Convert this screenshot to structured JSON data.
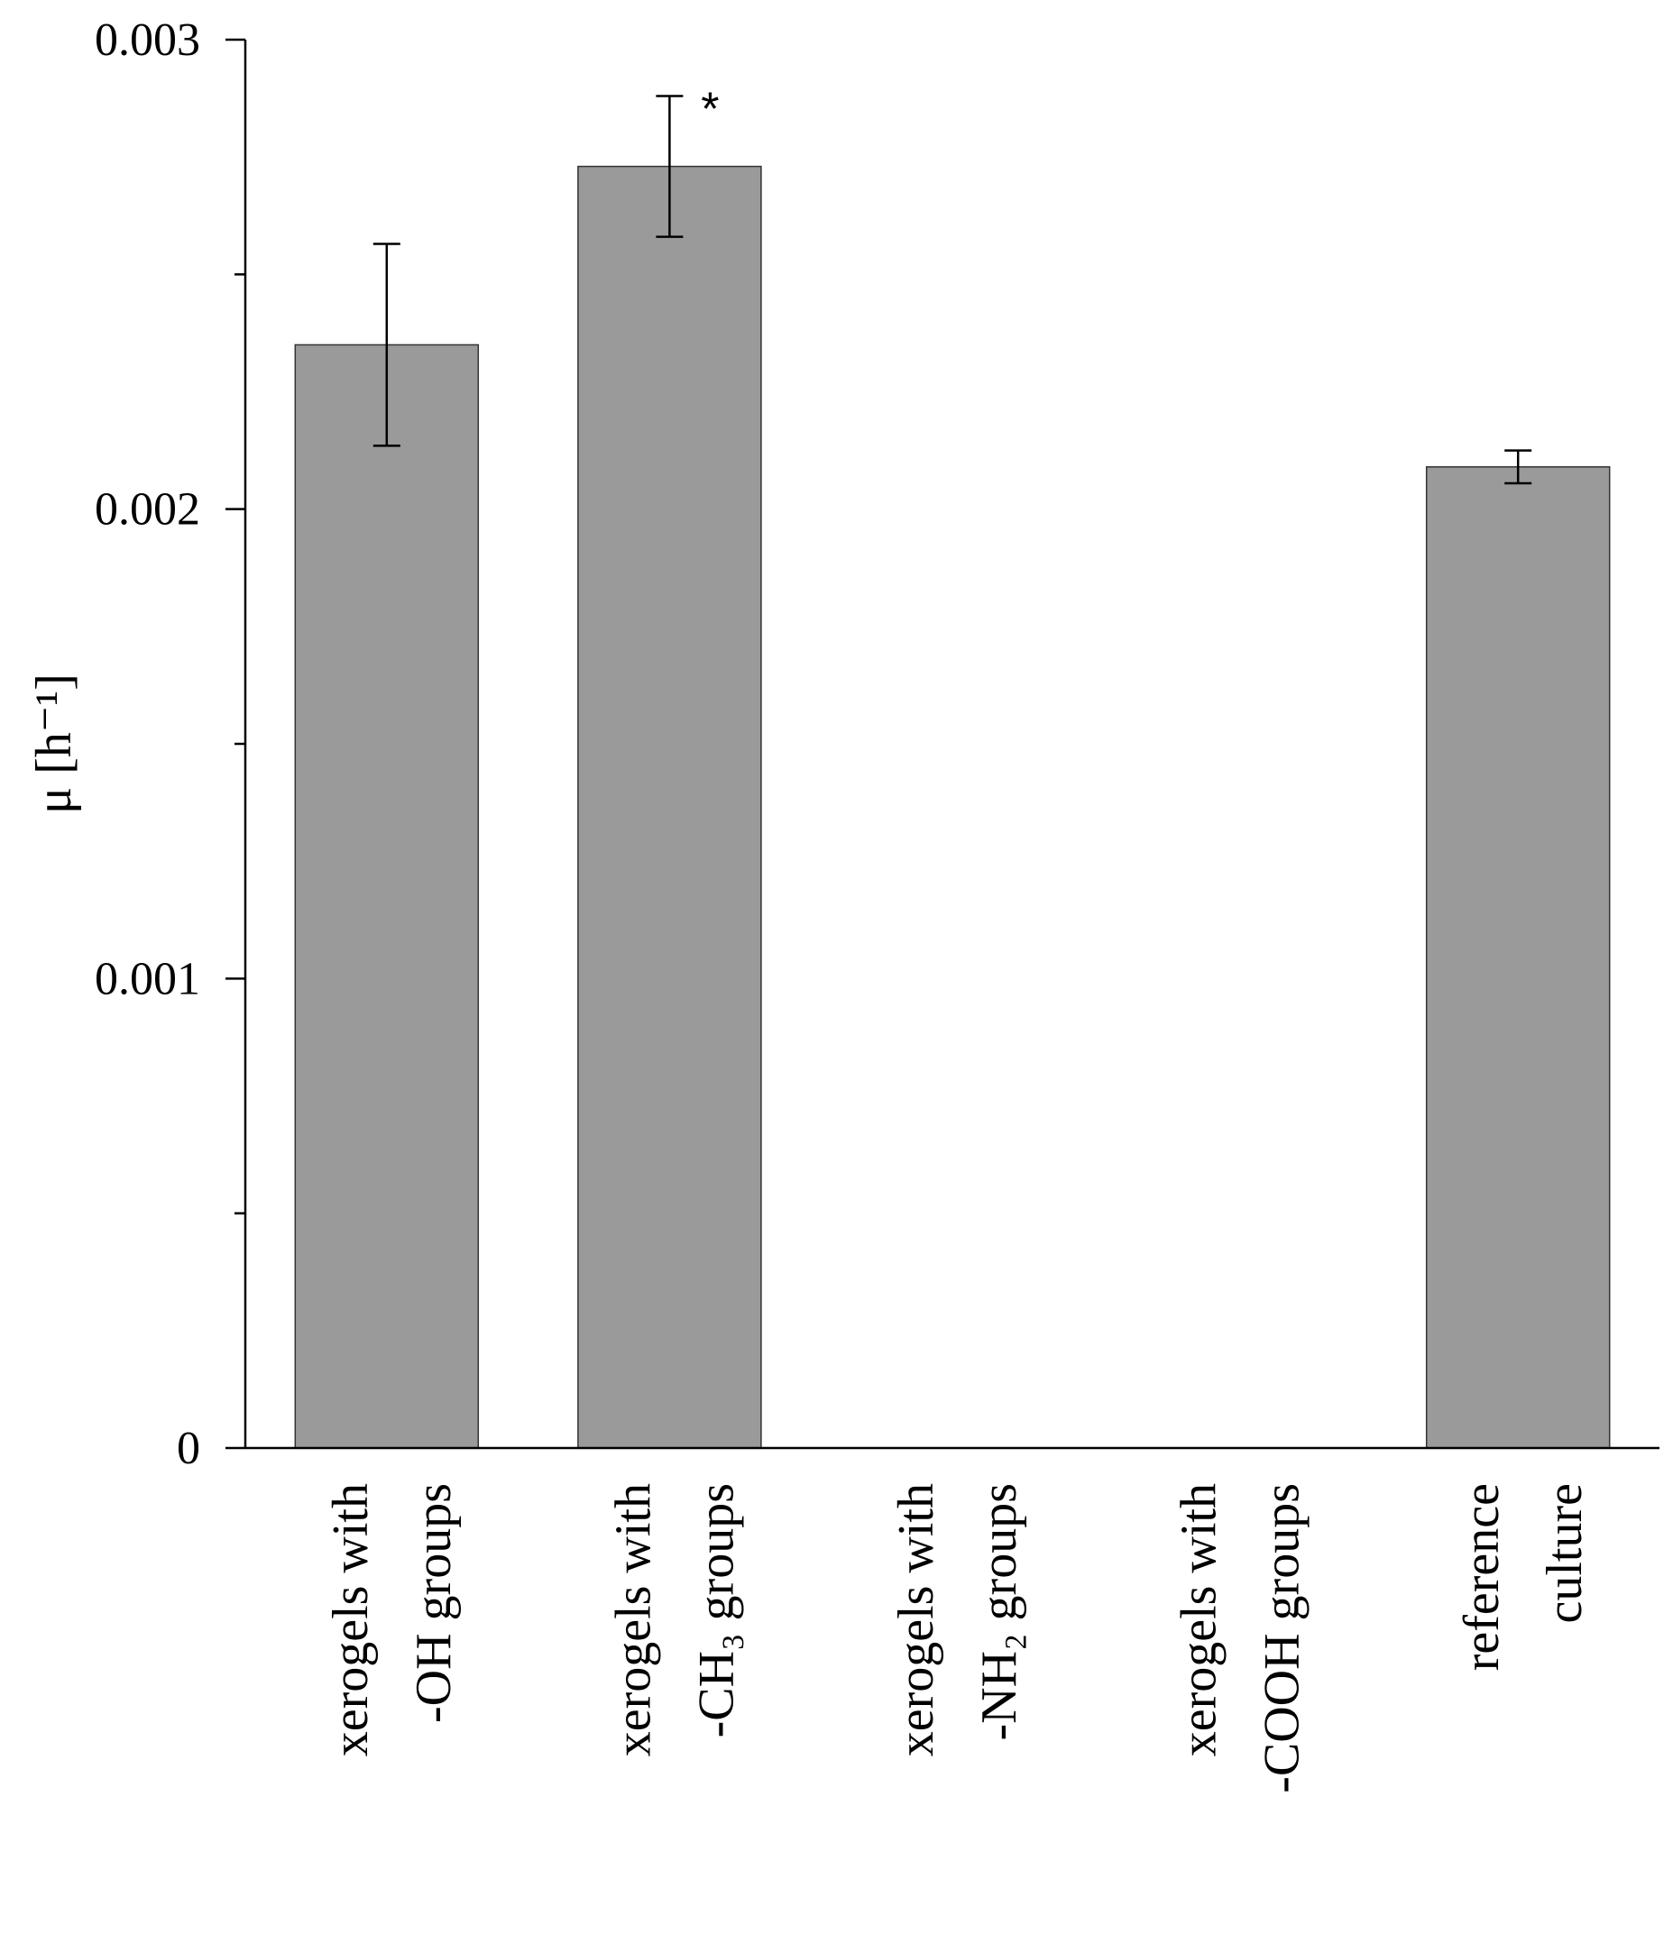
{
  "chart_data": {
    "type": "bar",
    "categories": [
      [
        "xerogels with",
        "-OH groups"
      ],
      [
        "xerogels with",
        "-CH₃ groups"
      ],
      [
        "xerogels with",
        "-NH₂ groups"
      ],
      [
        "xerogels with",
        "-COOH groups"
      ],
      [
        "reference",
        "culture"
      ]
    ],
    "values": [
      0.00235,
      0.00273,
      0.0,
      0.0,
      0.00209
    ],
    "errors": [
      0.000215,
      0.00015,
      0.0,
      0.0,
      3.5e-05
    ],
    "significance": [
      "",
      "*",
      "",
      "",
      ""
    ],
    "ylabel": "μ [h⁻¹]",
    "ylim": [
      0,
      0.003
    ],
    "yticks_major": [
      0,
      0.001,
      0.002,
      0.003
    ],
    "ytick_labels": [
      "0",
      "0.001",
      "0.002",
      "0.003"
    ],
    "yticks_minor": [
      0.0005,
      0.0015,
      0.0025
    ],
    "bar_color": "#9a9a9a",
    "grid": false
  }
}
